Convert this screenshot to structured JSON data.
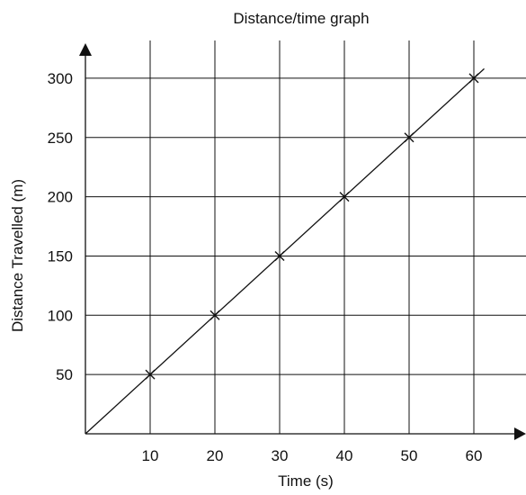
{
  "chart_data": {
    "type": "line",
    "title": "Distance/time graph",
    "xlabel": "Time (s)",
    "ylabel": "Distance Travelled (m)",
    "x_ticks": [
      10,
      20,
      30,
      40,
      50,
      60
    ],
    "y_ticks": [
      50,
      100,
      150,
      200,
      250,
      300
    ],
    "xlim": [
      0,
      70
    ],
    "ylim": [
      0,
      300
    ],
    "grid": true,
    "line_extends_to": {
      "x": 61.6,
      "y": 308
    },
    "series": [
      {
        "x": [
          10,
          20,
          30,
          40,
          50,
          60
        ],
        "y": [
          50,
          100,
          150,
          200,
          250,
          300
        ],
        "marker": "x"
      }
    ]
  }
}
